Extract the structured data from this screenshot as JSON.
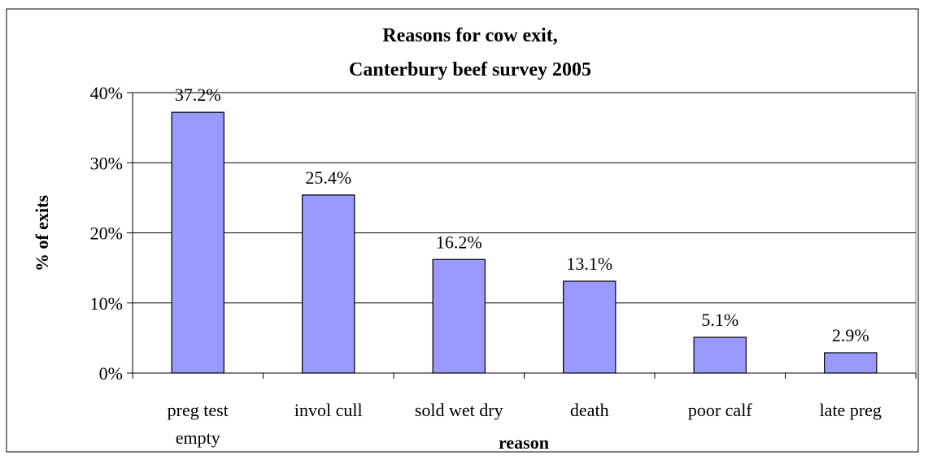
{
  "colors": {
    "bar_fill": "#9999ff",
    "bar_stroke": "#000000",
    "gridline": "#000000",
    "background": "#ffffff"
  },
  "chart_data": {
    "type": "bar",
    "title": "Reasons for cow exit,",
    "subtitle": "Canterbury beef survey 2005",
    "xlabel": "reason",
    "ylabel": "% of exits",
    "categories": [
      "preg test empty",
      "invol cull",
      "sold wet dry",
      "death",
      "poor calf",
      "late preg"
    ],
    "category_lines": [
      [
        "preg test",
        "empty"
      ],
      [
        "invol cull"
      ],
      [
        "sold wet dry"
      ],
      [
        "death"
      ],
      [
        "poor calf"
      ],
      [
        "late preg"
      ]
    ],
    "values": [
      37.2,
      25.4,
      16.2,
      13.1,
      5.1,
      2.9
    ],
    "data_labels": [
      "37.2%",
      "25.4%",
      "16.2%",
      "13.1%",
      "5.1%",
      "2.9%"
    ],
    "ylim": [
      0,
      40
    ],
    "yticks": [
      0,
      10,
      20,
      30,
      40
    ],
    "ytick_labels": [
      "0%",
      "10%",
      "20%",
      "30%",
      "40%"
    ],
    "grid": true,
    "legend": "none"
  }
}
